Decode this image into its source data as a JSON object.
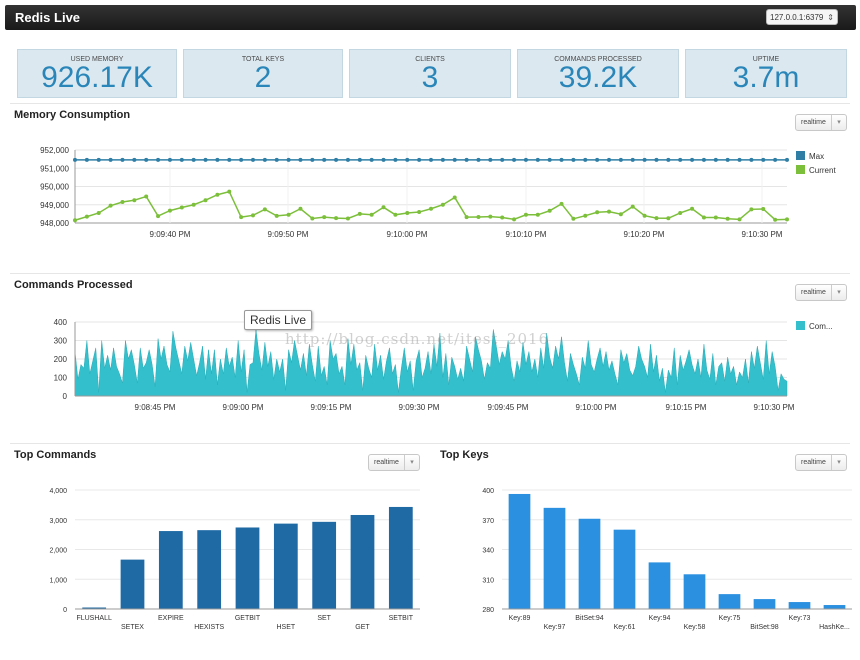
{
  "app": {
    "title": "Redis Live",
    "server": "127.0.0.1:6379"
  },
  "stats": [
    {
      "label": "USED MEMORY",
      "value": "926.17K"
    },
    {
      "label": "TOTAL KEYS",
      "value": "2"
    },
    {
      "label": "CLIENTS",
      "value": "3"
    },
    {
      "label": "COMMANDS PROCESSED",
      "value": "39.2K"
    },
    {
      "label": "UPTIME",
      "value": "3.7m"
    }
  ],
  "memory": {
    "title": "Memory Consumption",
    "range_label": "realtime"
  },
  "commands": {
    "title": "Commands Processed",
    "range_label": "realtime",
    "tooltip": "Redis Live"
  },
  "top_commands": {
    "title": "Top Commands",
    "range_label": "realtime"
  },
  "top_keys": {
    "title": "Top Keys",
    "range_label": "realtime"
  },
  "watermark": "http://blog.csdn.net/itest_2016",
  "colors": {
    "accent": "#2a86b9",
    "max": "#2e7ea6",
    "current": "#7cbf3a",
    "area": "#33c0cc",
    "bar_dark": "#1f6aa5",
    "bar_light": "#2b90e0"
  },
  "chart_data": [
    {
      "type": "line",
      "title": "Memory Consumption",
      "ylim": [
        948000,
        952000
      ],
      "yticks": [
        "952,000",
        "951,000",
        "950,000",
        "949,000",
        "948,000"
      ],
      "xticks": [
        "9:09:40 PM",
        "9:09:50 PM",
        "9:10:00 PM",
        "9:10:10 PM",
        "9:10:20 PM",
        "9:10:30 PM"
      ],
      "legend_position": "right",
      "series": [
        {
          "name": "Max",
          "values": [
            951460,
            951460,
            951460,
            951460,
            951460,
            951460,
            951460,
            951460,
            951460,
            951460,
            951460,
            951460,
            951460,
            951460,
            951460,
            951460,
            951460,
            951460,
            951460,
            951460,
            951460,
            951460,
            951460,
            951460,
            951460,
            951460,
            951460,
            951460,
            951460,
            951460,
            951460,
            951460,
            951460,
            951460,
            951460,
            951460,
            951460,
            951460,
            951460,
            951460,
            951460,
            951460,
            951460,
            951460,
            951460,
            951460,
            951460,
            951460,
            951460,
            951460,
            951460,
            951460,
            951460,
            951460,
            951460,
            951460,
            951460,
            951460,
            951460,
            951460,
            951460
          ]
        },
        {
          "name": "Current",
          "values": [
            948150,
            948350,
            948550,
            948950,
            949150,
            949250,
            949450,
            948380,
            948680,
            948850,
            949000,
            949250,
            949550,
            949720,
            948320,
            948420,
            948750,
            948390,
            948450,
            948780,
            948250,
            948320,
            948270,
            948250,
            948500,
            948450,
            948860,
            948450,
            948550,
            948600,
            948780,
            949000,
            949400,
            948320,
            948330,
            948350,
            948300,
            948200,
            948450,
            948450,
            948670,
            949050,
            948230,
            948400,
            948590,
            948620,
            948480,
            948900,
            948400,
            948270,
            948260,
            948550,
            948780,
            948300,
            948300,
            948230,
            948200,
            948750,
            948770,
            948180,
            948200
          ]
        }
      ]
    },
    {
      "type": "area",
      "title": "Commands Processed",
      "ylim": [
        0,
        400
      ],
      "yticks": [
        400,
        300,
        200,
        100,
        0
      ],
      "xticks": [
        "9:08:45 PM",
        "9:09:00 PM",
        "9:09:15 PM",
        "9:09:30 PM",
        "9:09:45 PM",
        "9:10:00 PM",
        "9:10:15 PM",
        "9:10:30 PM"
      ],
      "legend_position": "right",
      "series": [
        {
          "name": "Com...",
          "values": [
            240,
            90,
            170,
            150,
            300,
            120,
            190,
            260,
            20,
            300,
            150,
            220,
            140,
            260,
            160,
            120,
            70,
            300,
            200,
            250,
            170,
            70,
            260,
            150,
            180,
            250,
            170,
            50,
            310,
            200,
            270,
            170,
            130,
            350,
            260,
            190,
            120,
            270,
            190,
            290,
            200,
            110,
            180,
            270,
            90,
            250,
            120,
            250,
            60,
            200,
            120,
            260,
            160,
            210,
            100,
            300,
            130,
            250,
            20,
            170,
            180,
            360,
            230,
            140,
            290,
            160,
            240,
            90,
            200,
            130,
            200,
            30,
            250,
            180,
            300,
            220,
            140,
            230,
            110,
            280,
            170,
            80,
            270,
            110,
            160,
            60,
            300,
            200,
            230,
            120,
            160,
            60,
            310,
            170,
            280,
            140,
            180,
            30,
            220,
            150,
            100,
            280,
            140,
            220,
            90,
            190,
            260,
            120,
            170,
            20,
            150,
            260,
            130,
            190,
            30,
            190,
            250,
            100,
            150,
            240,
            120,
            280,
            160,
            340,
            100,
            230,
            60,
            210,
            160,
            90,
            150,
            80,
            270,
            200,
            130,
            320,
            250,
            190,
            90,
            180,
            150,
            360,
            270,
            170,
            240,
            200,
            300,
            160,
            80,
            190,
            130,
            290,
            170,
            240,
            130,
            200,
            100,
            260,
            150,
            340,
            210,
            150,
            270,
            200,
            320,
            180,
            80,
            230,
            170,
            120,
            60,
            210,
            150,
            300,
            170,
            130,
            200,
            260,
            160,
            240,
            140,
            190,
            120,
            60,
            250,
            180,
            230,
            140,
            110,
            160,
            270,
            200,
            160,
            100,
            280,
            130,
            220,
            80,
            150,
            20,
            140,
            100,
            260,
            60,
            220,
            140,
            190,
            250,
            170,
            120,
            200,
            100,
            280,
            140,
            90,
            230,
            60,
            160,
            180,
            80,
            210,
            120,
            160,
            60,
            130,
            100,
            200,
            70,
            240,
            150,
            270,
            180,
            90,
            300,
            120,
            240,
            160,
            30,
            120,
            90,
            80
          ]
        }
      ]
    },
    {
      "type": "bar",
      "title": "Top Commands",
      "ylim": [
        0,
        4000
      ],
      "yticks": [
        "4,000",
        "3,000",
        "2,000",
        "1,000",
        "0"
      ],
      "categories": [
        "FLUSHALL",
        "SETEX",
        "EXPIRE",
        "HEXISTS",
        "GETBIT",
        "HSET",
        "SET",
        "GET",
        "SETBIT"
      ],
      "values": [
        50,
        1660,
        2620,
        2650,
        2740,
        2870,
        2930,
        3160,
        3430
      ]
    },
    {
      "type": "bar",
      "title": "Top Keys",
      "ylim": [
        280,
        400
      ],
      "yticks": [
        400,
        370,
        340,
        310,
        280
      ],
      "categories": [
        "Key:89",
        "Key:97",
        "BitSet:94",
        "Key:61",
        "Key:94",
        "Key:58",
        "Key:75",
        "BitSet:98",
        "Key:73",
        "HashKe..."
      ],
      "values": [
        396,
        382,
        371,
        360,
        327,
        315,
        295,
        290,
        287,
        284
      ]
    }
  ]
}
